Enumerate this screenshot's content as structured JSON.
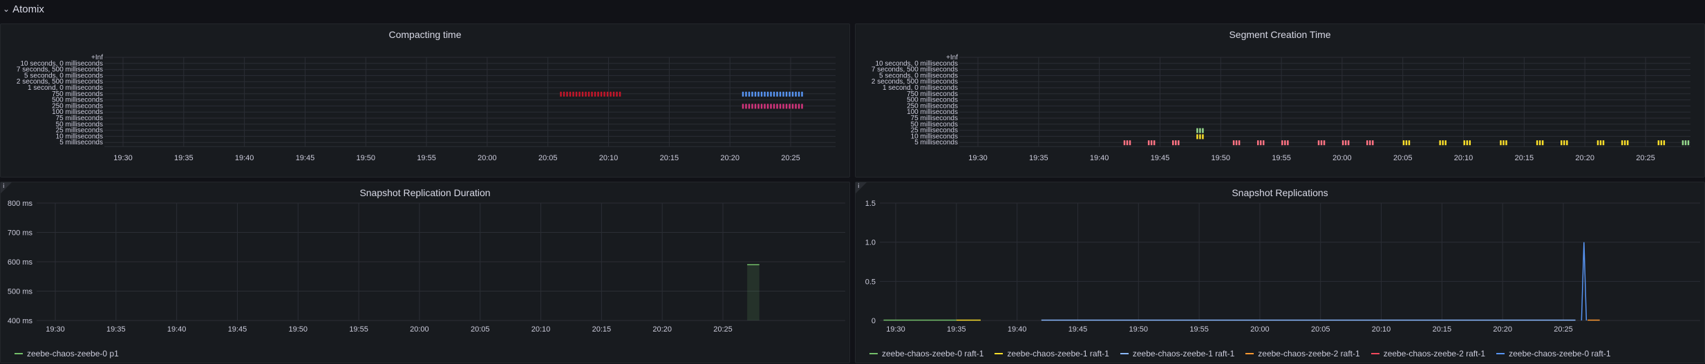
{
  "row": {
    "title": "Atomix",
    "chevron": "chevron-down-icon"
  },
  "colors": {
    "grid": "#2b2e35",
    "axis_text": "#ccccdc",
    "heat_red": "#c4162a",
    "heat_pink": "#d4347c",
    "heat_blue": "#5794f2",
    "heat_yellow": "#fade2a",
    "heat_green": "#96d98d",
    "heat_orange": "#ff7383",
    "series_green": "#73bf69"
  },
  "panels": {
    "compacting": {
      "title": "Compacting time"
    },
    "segment": {
      "title": "Segment Creation Time"
    },
    "snap_dur": {
      "title": "Snapshot Replication Duration",
      "info": "i"
    },
    "snap_rep": {
      "title": "Snapshot Replications",
      "info": "i"
    }
  },
  "heatmap_y_labels": [
    "+Inf",
    "10 seconds, 0 milliseconds",
    "7 seconds, 500 milliseconds",
    "5 seconds, 0 milliseconds",
    "2 seconds, 500 milliseconds",
    "1 second, 0 milliseconds",
    "750 milliseconds",
    "500 milliseconds",
    "250 milliseconds",
    "100 milliseconds",
    "75 milliseconds",
    "50 milliseconds",
    "25 milliseconds",
    "10 milliseconds",
    "5 milliseconds"
  ],
  "time_labels": [
    "19:30",
    "19:35",
    "19:40",
    "19:45",
    "19:50",
    "19:55",
    "20:00",
    "20:05",
    "20:10",
    "20:15",
    "20:20",
    "20:25"
  ],
  "chart_data": [
    {
      "type": "heatmap",
      "title": "Compacting time",
      "x": [
        "19:30",
        "19:35",
        "19:40",
        "19:45",
        "19:50",
        "19:55",
        "20:00",
        "20:05",
        "20:10",
        "20:15",
        "20:20",
        "20:25"
      ],
      "y": [
        "+Inf",
        "10 seconds, 0 milliseconds",
        "7 seconds, 500 milliseconds",
        "5 seconds, 0 milliseconds",
        "2 seconds, 500 milliseconds",
        "1 second, 0 milliseconds",
        "750 milliseconds",
        "500 milliseconds",
        "250 milliseconds",
        "100 milliseconds",
        "75 milliseconds",
        "50 milliseconds",
        "25 milliseconds",
        "10 milliseconds",
        "5 milliseconds"
      ],
      "cells": [
        {
          "from": "20:06",
          "to": "20:11",
          "bucket": "750 milliseconds",
          "color": "#c4162a"
        },
        {
          "from": "20:21",
          "to": "20:26",
          "bucket": "750 milliseconds",
          "color": "#5794f2"
        },
        {
          "from": "20:21",
          "to": "20:26",
          "bucket": "250 milliseconds",
          "color": "#d4347c"
        }
      ]
    },
    {
      "type": "heatmap",
      "title": "Segment Creation Time",
      "x": [
        "19:30",
        "19:35",
        "19:40",
        "19:45",
        "19:50",
        "19:55",
        "20:00",
        "20:05",
        "20:10",
        "20:15",
        "20:20",
        "20:25"
      ],
      "y": [
        "+Inf",
        "10 seconds, 0 milliseconds",
        "7 seconds, 500 milliseconds",
        "5 seconds, 0 milliseconds",
        "2 seconds, 500 milliseconds",
        "1 second, 0 milliseconds",
        "750 milliseconds",
        "500 milliseconds",
        "250 milliseconds",
        "100 milliseconds",
        "75 milliseconds",
        "50 milliseconds",
        "25 milliseconds",
        "10 milliseconds",
        "5 milliseconds"
      ],
      "cells": [
        {
          "at": "19:42",
          "bucket": "5 milliseconds",
          "color": "#ff7383"
        },
        {
          "at": "19:44",
          "bucket": "5 milliseconds",
          "color": "#ff7383"
        },
        {
          "at": "19:46",
          "bucket": "5 milliseconds",
          "color": "#ff7383"
        },
        {
          "at": "19:48",
          "bucket": "10 milliseconds",
          "color": "#fade2a"
        },
        {
          "at": "19:48",
          "bucket": "25 milliseconds",
          "color": "#96d98d"
        },
        {
          "at": "19:51",
          "bucket": "5 milliseconds",
          "color": "#ff7383"
        },
        {
          "at": "19:53",
          "bucket": "5 milliseconds",
          "color": "#ff7383"
        },
        {
          "at": "19:55",
          "bucket": "5 milliseconds",
          "color": "#ff7383"
        },
        {
          "at": "19:58",
          "bucket": "5 milliseconds",
          "color": "#ff7383"
        },
        {
          "at": "20:00",
          "bucket": "5 milliseconds",
          "color": "#ff7383"
        },
        {
          "at": "20:02",
          "bucket": "5 milliseconds",
          "color": "#ff7383"
        },
        {
          "at": "20:05",
          "bucket": "5 milliseconds",
          "color": "#fade2a"
        },
        {
          "at": "20:08",
          "bucket": "5 milliseconds",
          "color": "#fade2a"
        },
        {
          "at": "20:10",
          "bucket": "5 milliseconds",
          "color": "#fade2a"
        },
        {
          "at": "20:13",
          "bucket": "5 milliseconds",
          "color": "#fade2a"
        },
        {
          "at": "20:16",
          "bucket": "5 milliseconds",
          "color": "#fade2a"
        },
        {
          "at": "20:18",
          "bucket": "5 milliseconds",
          "color": "#fade2a"
        },
        {
          "at": "20:21",
          "bucket": "5 milliseconds",
          "color": "#fade2a"
        },
        {
          "at": "20:23",
          "bucket": "5 milliseconds",
          "color": "#fade2a"
        },
        {
          "at": "20:26",
          "bucket": "5 milliseconds",
          "color": "#fade2a"
        },
        {
          "at": "20:28",
          "bucket": "5 milliseconds",
          "color": "#96d98d"
        }
      ]
    },
    {
      "type": "line",
      "title": "Snapshot Replication Duration",
      "x": [
        "19:30",
        "19:35",
        "19:40",
        "19:45",
        "19:50",
        "19:55",
        "20:00",
        "20:05",
        "20:10",
        "20:15",
        "20:20",
        "20:25"
      ],
      "yticks": [
        "400 ms",
        "500 ms",
        "600 ms",
        "700 ms",
        "800 ms"
      ],
      "ylim": [
        400,
        800
      ],
      "series": [
        {
          "name": "zeebe-chaos-zeebe-0 p1",
          "color": "#73bf69",
          "points": [
            {
              "t": "20:27",
              "v": 590
            },
            {
              "t": "20:28",
              "v": 590
            }
          ]
        }
      ]
    },
    {
      "type": "line",
      "title": "Snapshot Replications",
      "x": [
        "19:30",
        "19:35",
        "19:40",
        "19:45",
        "19:50",
        "19:55",
        "20:00",
        "20:05",
        "20:10",
        "20:15",
        "20:20",
        "20:25"
      ],
      "yticks": [
        "0",
        "0.5",
        "1.0",
        "1.5"
      ],
      "ylim": [
        0,
        1.5
      ],
      "series": [
        {
          "name": "zeebe-chaos-zeebe-0 raft-1",
          "color": "#73bf69"
        },
        {
          "name": "zeebe-chaos-zeebe-1 raft-1",
          "color": "#fade2a"
        },
        {
          "name": "zeebe-chaos-zeebe-1 raft-1",
          "color": "#8ab8ff"
        },
        {
          "name": "zeebe-chaos-zeebe-2 raft-1",
          "color": "#ff9830"
        },
        {
          "name": "zeebe-chaos-zeebe-2 raft-1",
          "color": "#f2495c"
        },
        {
          "name": "zeebe-chaos-zeebe-0 raft-1",
          "color": "#5794f2",
          "points": [
            {
              "t": "20:26.5",
              "v": 0
            },
            {
              "t": "20:26.7",
              "v": 1
            },
            {
              "t": "20:26.9",
              "v": 0
            }
          ]
        }
      ]
    }
  ]
}
